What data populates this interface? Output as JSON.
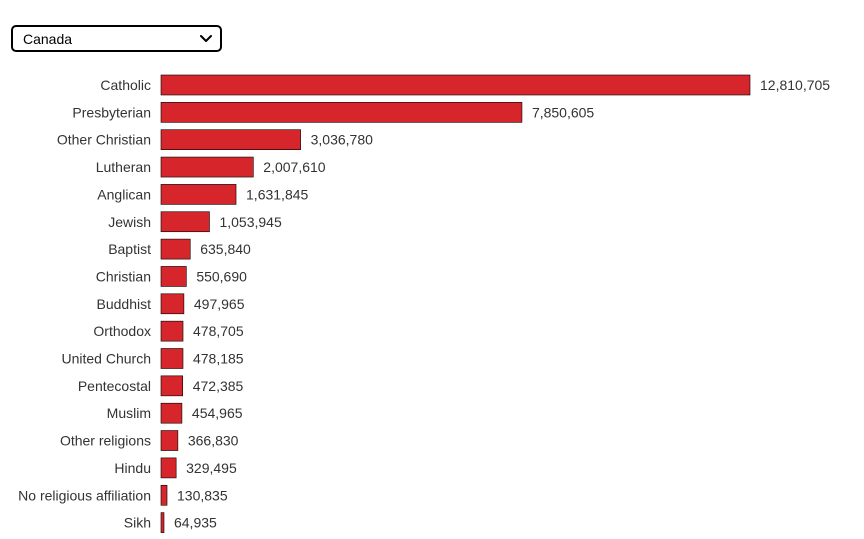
{
  "selector": {
    "selected": "Canada",
    "icon": "chevron-down-icon"
  },
  "colors": {
    "bar": "#d7262b",
    "text": "#333333"
  },
  "chart_data": {
    "type": "bar",
    "orientation": "horizontal",
    "categories": [
      "Catholic",
      "Presbyterian",
      "Other Christian",
      "Lutheran",
      "Anglican",
      "Jewish",
      "Baptist",
      "Christian",
      "Buddhist",
      "Orthodox",
      "United Church",
      "Pentecostal",
      "Muslim",
      "Other religions",
      "Hindu",
      "No religious affiliation",
      "Sikh"
    ],
    "values": [
      12810705,
      7850605,
      3036780,
      2007610,
      1631845,
      1053945,
      635840,
      550690,
      497965,
      478705,
      478185,
      472385,
      454965,
      366830,
      329495,
      130835,
      64935
    ],
    "value_labels": [
      "12,810,705",
      "7,850,605",
      "3,036,780",
      "2,007,610",
      "1,631,845",
      "1,053,945",
      "635,840",
      "550,690",
      "497,965",
      "478,705",
      "478,185",
      "472,385",
      "454,965",
      "366,830",
      "329,495",
      "130,835",
      "64,935"
    ],
    "xlim": [
      0,
      12810705
    ],
    "grid": false
  }
}
